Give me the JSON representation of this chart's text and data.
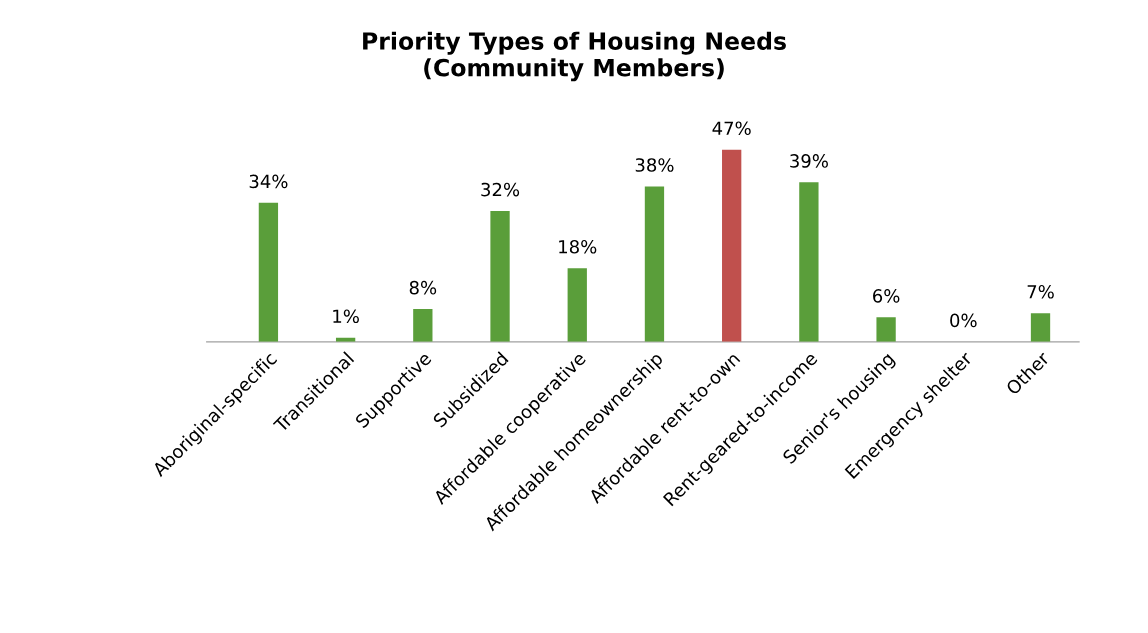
{
  "chart_data": {
    "type": "bar",
    "title": "Priority Types of Housing Needs\n(Community Members)",
    "categories": [
      "Aboriginal-specific",
      "Transitional",
      "Supportive",
      "Subsidized",
      "Affordable cooperative",
      "Affordable homeownership",
      "Affordable rent-to-own",
      "Rent-geared-to-income",
      "Senior's housing",
      "Emergency shelter",
      "Other"
    ],
    "values": [
      34,
      1,
      8,
      32,
      18,
      38,
      47,
      39,
      6,
      0,
      7
    ],
    "colors": [
      "#5a9e3a",
      "#5a9e3a",
      "#5a9e3a",
      "#5a9e3a",
      "#5a9e3a",
      "#5a9e3a",
      "#c0504d",
      "#5a9e3a",
      "#5a9e3a",
      "#5a9e3a",
      "#5a9e3a"
    ],
    "value_labels": [
      "34%",
      "1%",
      "8%",
      "32%",
      "18%",
      "38%",
      "47%",
      "39%",
      "6%",
      "0%",
      "7%"
    ],
    "grid": false,
    "legend": false
  }
}
